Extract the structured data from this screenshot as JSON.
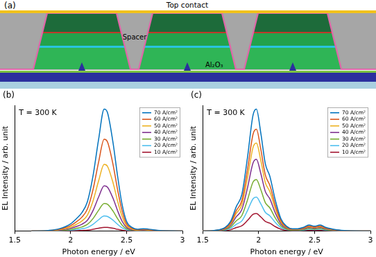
{
  "diagram": {
    "panel_label": "(a)",
    "labels": {
      "top_contact": "Top contact",
      "spacer": "Spacer",
      "oxide": "Al₂O₃"
    }
  },
  "chart_data": [
    {
      "type": "line",
      "panel_label": "(b)",
      "annotation": "T = 300 K",
      "x_label": "Photon energy / eV",
      "y_label": "EL Intensity / arb. unit",
      "xlim": [
        1.5,
        3
      ],
      "xticks": [
        1.5,
        2,
        2.5,
        3
      ],
      "ylim": [
        0,
        100
      ],
      "tick_labels": "x",
      "grid": false,
      "legend": "upper right",
      "x": [
        1.65,
        1.8,
        1.9,
        2.0,
        2.05,
        2.1,
        2.15,
        2.2,
        2.25,
        2.3,
        2.33,
        2.38,
        2.42,
        2.46,
        2.5,
        2.55,
        2.6,
        2.65,
        2.7,
        2.8,
        2.9,
        3.0
      ],
      "series": [
        {
          "name": "70 A/cm²",
          "color": "#0072bd",
          "values": [
            0,
            0.5,
            1.9,
            5.8,
            9.7,
            14.6,
            23.3,
            43.7,
            72.8,
            97,
            94.1,
            69.8,
            43.7,
            21.3,
            7.8,
            2.9,
            1.5,
            1.9,
            1.5,
            0.5,
            0.2,
            0
          ]
        },
        {
          "name": "60 A/cm²",
          "color": "#d95319",
          "values": [
            0,
            0.4,
            1.5,
            4.4,
            7.3,
            11,
            17.5,
            32.9,
            54.8,
            73,
            70.8,
            52.6,
            32.9,
            16.1,
            5.8,
            2.2,
            1.1,
            1.5,
            1.1,
            0.4,
            0.1,
            0
          ]
        },
        {
          "name": "50 A/cm²",
          "color": "#edb120",
          "values": [
            0,
            0.3,
            1.1,
            3.2,
            5.3,
            8,
            12.7,
            23.9,
            39.8,
            53,
            51.4,
            38.2,
            23.9,
            11.7,
            4.2,
            1.6,
            0.8,
            1.1,
            0.8,
            0.3,
            0.1,
            0
          ]
        },
        {
          "name": "40 A/cm²",
          "color": "#7e2f8e",
          "values": [
            0,
            0.2,
            0.7,
            2.2,
            3.6,
            5.4,
            8.6,
            16.2,
            27,
            36,
            34.9,
            25.9,
            16.2,
            7.9,
            2.9,
            1.1,
            0.5,
            0.7,
            0.5,
            0.2,
            0.1,
            0
          ]
        },
        {
          "name": "30 A/cm²",
          "color": "#77ac30",
          "values": [
            0,
            0.1,
            0.4,
            1.3,
            2.2,
            3.3,
            5.3,
            9.9,
            16.5,
            22,
            21.3,
            15.8,
            9.9,
            4.8,
            1.8,
            0.7,
            0.3,
            0.4,
            0.3,
            0.1,
            0,
            0
          ]
        },
        {
          "name": "20 A/cm²",
          "color": "#4dbeee",
          "values": [
            0,
            0.1,
            0.2,
            0.7,
            1.2,
            1.8,
            2.9,
            5.4,
            9,
            12,
            11.6,
            8.6,
            5.4,
            2.6,
            1,
            0.4,
            0.2,
            0.2,
            0.2,
            0.1,
            0,
            0
          ]
        },
        {
          "name": "10 A/cm²",
          "color": "#a2142f",
          "values": [
            0,
            0,
            0.1,
            0.2,
            0.3,
            0.5,
            0.7,
            1.4,
            2.3,
            3,
            2.9,
            2.2,
            1.4,
            0.7,
            0.2,
            0.1,
            0,
            0.1,
            0,
            0,
            0,
            0
          ]
        }
      ]
    },
    {
      "type": "line",
      "panel_label": "(c)",
      "annotation": "T = 300 K",
      "x_label": "Photon energy / eV",
      "y_label": "EL Intensity / arb. unit",
      "xlim": [
        1.5,
        3
      ],
      "xticks": [
        1.5,
        2,
        2.5,
        3
      ],
      "ylim": [
        0,
        100
      ],
      "tick_labels": "x",
      "grid": false,
      "legend": "upper right",
      "x": [
        1.5,
        1.6,
        1.7,
        1.75,
        1.8,
        1.85,
        1.9,
        1.95,
        1.98,
        2.02,
        2.06,
        2.1,
        2.15,
        2.2,
        2.25,
        2.3,
        2.35,
        2.4,
        2.45,
        2.5,
        2.55,
        2.6,
        2.7,
        2.8,
        3.0
      ],
      "series": [
        {
          "name": "70 A/cm²",
          "color": "#0072bd",
          "values": [
            0,
            0.5,
            2.9,
            7.8,
            19.4,
            29.1,
            58.2,
            92.2,
            97,
            77.6,
            53.4,
            43.7,
            24.3,
            9.7,
            3.9,
            1.9,
            1.9,
            2.9,
            4.9,
            3.9,
            4.9,
            2.9,
            1,
            0.3,
            0
          ]
        },
        {
          "name": "60 A/cm²",
          "color": "#d95319",
          "values": [
            0,
            0.4,
            2.4,
            6.5,
            16.2,
            24.3,
            48.6,
            77,
            81,
            64.8,
            44.6,
            36.5,
            20.3,
            8.1,
            3.2,
            1.6,
            1.6,
            2.4,
            4.1,
            3.2,
            4.1,
            2.4,
            0.8,
            0.2,
            0
          ]
        },
        {
          "name": "50 A/cm²",
          "color": "#edb120",
          "values": [
            0,
            0.4,
            2.1,
            5.6,
            14,
            21,
            42,
            66.5,
            70,
            56,
            38.5,
            31.5,
            17.5,
            7,
            2.8,
            1.4,
            1.4,
            2.1,
            3.5,
            2.8,
            3.5,
            2.1,
            0.7,
            0.2,
            0
          ]
        },
        {
          "name": "40 A/cm²",
          "color": "#7e2f8e",
          "values": [
            0,
            0.3,
            1.7,
            4.6,
            11.4,
            17.1,
            34.2,
            54.2,
            57,
            45.6,
            31.4,
            25.7,
            14.3,
            5.7,
            2.3,
            1.1,
            1.1,
            1.7,
            2.9,
            2.3,
            2.9,
            1.7,
            0.6,
            0.2,
            0
          ]
        },
        {
          "name": "30 A/cm²",
          "color": "#77ac30",
          "values": [
            0,
            0.2,
            1.2,
            3.3,
            8.2,
            12.3,
            24.6,
            39,
            41,
            32.8,
            22.6,
            18.5,
            10.3,
            4.1,
            1.6,
            0.8,
            0.8,
            1.2,
            2.1,
            1.6,
            2.1,
            1.2,
            0.4,
            0.1,
            0
          ]
        },
        {
          "name": "20 A/cm²",
          "color": "#4dbeee",
          "values": [
            0,
            0.1,
            0.8,
            2.2,
            5.4,
            8.1,
            16.2,
            25.7,
            27,
            21.6,
            14.9,
            12.2,
            6.8,
            2.7,
            1.1,
            0.5,
            0.5,
            0.8,
            1.4,
            1.1,
            1.4,
            0.8,
            0.3,
            0.1,
            0
          ]
        },
        {
          "name": "10 A/cm²",
          "color": "#a2142f",
          "values": [
            0,
            0.1,
            0.4,
            1.1,
            2.8,
            4.2,
            8.4,
            13.3,
            14,
            11.2,
            7.7,
            6.3,
            3.5,
            1.4,
            0.6,
            0.3,
            0.3,
            0.4,
            0.7,
            0.6,
            0.7,
            0.4,
            0.1,
            0,
            0
          ]
        }
      ]
    }
  ]
}
